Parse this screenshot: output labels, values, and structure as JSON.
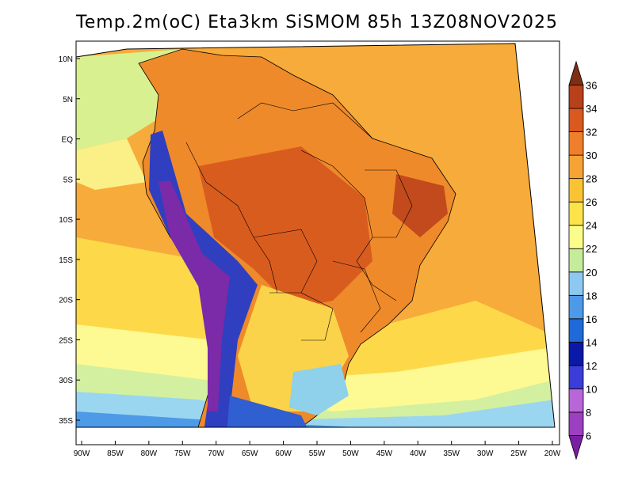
{
  "title": "Temp.2m(oC) Eta3km SiSMOM 85h 13Z08NOV2025",
  "map": {
    "lon_labels": [
      "90W",
      "85W",
      "80W",
      "75W",
      "70W",
      "65W",
      "60W",
      "55W",
      "50W",
      "45W",
      "40W",
      "35W",
      "30W",
      "25W",
      "20W"
    ],
    "lat_labels": [
      "10N",
      "5N",
      "EQ",
      "5S",
      "10S",
      "15S",
      "20S",
      "25S",
      "30S",
      "35S"
    ],
    "ocean_color": "#f6ab3c"
  },
  "colorbar": {
    "unit": "oC",
    "labels": [
      "6",
      "8",
      "10",
      "12",
      "14",
      "16",
      "18",
      "20",
      "22",
      "24",
      "26",
      "28",
      "30",
      "32",
      "34",
      "36"
    ],
    "colors": [
      "#7b1fa2",
      "#9c3fc0",
      "#b866d8",
      "#3c3cd8",
      "#0a1aa6",
      "#1f6ad8",
      "#4d9ae8",
      "#8cc8f0",
      "#c5ec9a",
      "#fbfd8a",
      "#fce34a",
      "#f9c334",
      "#f6a234",
      "#ef7f2a",
      "#d9591f",
      "#b8401a",
      "#7f2e14"
    ]
  }
}
